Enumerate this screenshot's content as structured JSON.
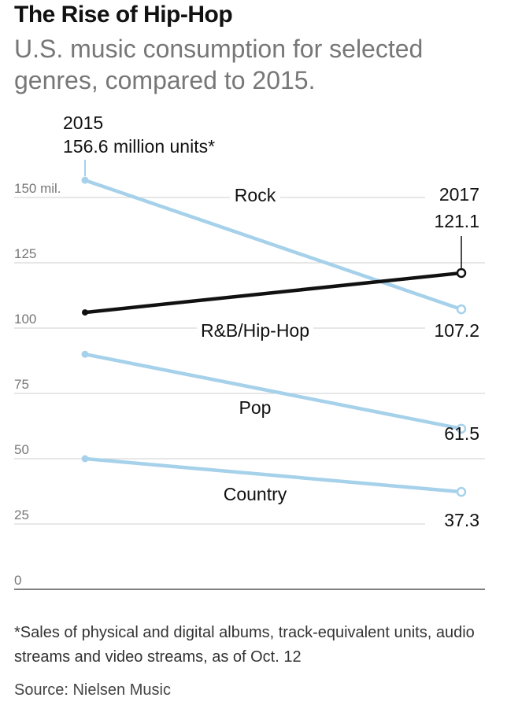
{
  "header": {
    "title": "The Rise of Hip-Hop",
    "subtitle": "U.S. music consumption for selected genres, compared to 2015."
  },
  "chart_data": {
    "type": "line",
    "title": "The Rise of Hip-Hop",
    "subtitle": "U.S. music consumption for selected genres, compared to 2015.",
    "x": [
      "2015",
      "2017"
    ],
    "y_unit_label": "mil.",
    "ylim": [
      0,
      160
    ],
    "yticks": [
      0,
      25,
      50,
      75,
      100,
      125,
      150
    ],
    "ytick_labels": [
      "0",
      "25",
      "50",
      "75",
      "100",
      "125",
      "150 mil."
    ],
    "grid": true,
    "series": [
      {
        "name": "Rock",
        "values": [
          156.6,
          107.2
        ],
        "color": "#a6d1ea"
      },
      {
        "name": "R&B/Hip-Hop",
        "values": [
          106.0,
          121.1
        ],
        "color": "#111111"
      },
      {
        "name": "Pop",
        "values": [
          90.0,
          61.5
        ],
        "color": "#a6d1ea"
      },
      {
        "name": "Country",
        "values": [
          50.0,
          37.3
        ],
        "color": "#a6d1ea"
      }
    ],
    "annotations": {
      "start_year": "2015",
      "start_value": "156.6 million units*",
      "end_year": "2017",
      "end_labels": [
        "121.1",
        "107.2",
        "61.5",
        "37.3"
      ]
    }
  },
  "footer": {
    "footnote": "*Sales of physical and digital albums, track-equivalent units, audio streams and video streams, as of Oct. 12",
    "source": "Source: Nielsen Music"
  }
}
